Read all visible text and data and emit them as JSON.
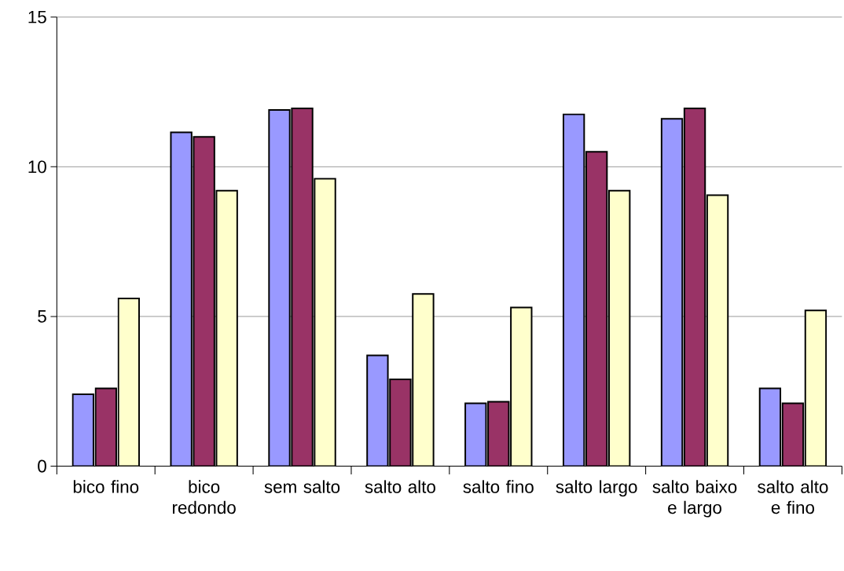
{
  "chart_data": {
    "type": "bar",
    "categories": [
      "bico fino",
      "bico redondo",
      "sem salto",
      "salto alto",
      "salto fino",
      "salto largo",
      "salto baixo e largo",
      "salto alto e fino"
    ],
    "series": [
      {
        "color": "#9999ff",
        "values": [
          2.4,
          11.15,
          11.9,
          3.7,
          2.1,
          11.75,
          11.6,
          2.6
        ]
      },
      {
        "color": "#993366",
        "values": [
          2.6,
          11.0,
          11.95,
          2.9,
          2.15,
          10.5,
          11.95,
          2.1
        ]
      },
      {
        "color": "#ffffcc",
        "values": [
          5.6,
          9.2,
          9.6,
          5.75,
          5.3,
          9.2,
          9.05,
          5.2
        ]
      }
    ],
    "ylim": [
      0,
      15
    ],
    "yticks": [
      0,
      5,
      10,
      15
    ],
    "grid": "y",
    "legend": false
  }
}
